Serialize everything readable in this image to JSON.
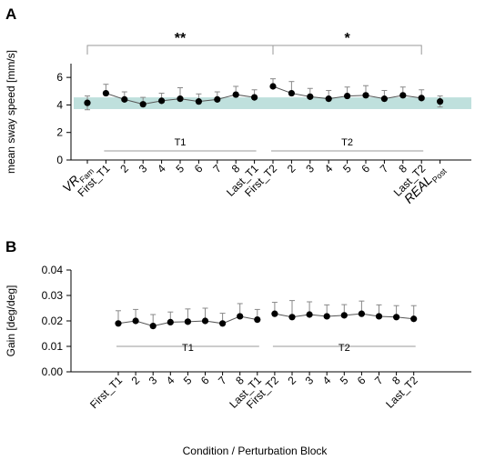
{
  "colors": {
    "band": "#bfe0dd",
    "marker": "#000000",
    "line": "#555555",
    "errorbar": "#888888",
    "axis": "#000000",
    "group_line": "#999999"
  },
  "chart_data": [
    {
      "panel": "A",
      "type": "scatter",
      "ylabel": "mean sway speed [mm/s]",
      "ylim": [
        0,
        7
      ],
      "yticks": [
        "0",
        "2",
        "4",
        "6"
      ],
      "reference_band": [
        3.7,
        4.55
      ],
      "x_labels": [
        {
          "main": "VR",
          "sub": "Fam"
        },
        {
          "main": "First_T1"
        },
        {
          "main": "2"
        },
        {
          "main": "3"
        },
        {
          "main": "4"
        },
        {
          "main": "5"
        },
        {
          "main": "6"
        },
        {
          "main": "7"
        },
        {
          "main": "8"
        },
        {
          "main": "Last_T1"
        },
        {
          "main": "First_T2"
        },
        {
          "main": "2"
        },
        {
          "main": "3"
        },
        {
          "main": "4"
        },
        {
          "main": "5"
        },
        {
          "main": "6"
        },
        {
          "main": "7"
        },
        {
          "main": "8"
        },
        {
          "main": "Last_T2"
        },
        {
          "main": "REAL",
          "sub": "Post"
        }
      ],
      "groups": [
        {
          "label": "T1",
          "from": 1,
          "to": 9
        },
        {
          "label": "T2",
          "from": 10,
          "to": 18
        }
      ],
      "series": [
        {
          "role": "single",
          "x": [
            0
          ],
          "values": [
            4.15
          ],
          "err": [
            0.5
          ]
        },
        {
          "role": "T1",
          "x": [
            1,
            2,
            3,
            4,
            5,
            6,
            7,
            8,
            9
          ],
          "values": [
            4.85,
            4.4,
            4.05,
            4.3,
            4.45,
            4.25,
            4.4,
            4.75,
            4.55
          ],
          "err": [
            0.65,
            0.55,
            0.5,
            0.55,
            0.8,
            0.55,
            0.55,
            0.6,
            0.55
          ]
        },
        {
          "role": "T2",
          "x": [
            10,
            11,
            12,
            13,
            14,
            15,
            16,
            17,
            18
          ],
          "values": [
            5.35,
            4.85,
            4.6,
            4.45,
            4.65,
            4.7,
            4.45,
            4.7,
            4.5
          ],
          "err": [
            0.55,
            0.85,
            0.6,
            0.6,
            0.65,
            0.7,
            0.6,
            0.6,
            0.6
          ]
        },
        {
          "role": "single",
          "x": [
            19
          ],
          "values": [
            4.25
          ],
          "err": [
            0.4
          ]
        }
      ],
      "significance": [
        {
          "label": "**",
          "from": 0,
          "to": 10
        },
        {
          "label": "*",
          "from": 10,
          "to": 18
        }
      ]
    },
    {
      "panel": "B",
      "type": "scatter",
      "ylabel": "Gain [deg/deg]",
      "ylim": [
        0,
        0.04
      ],
      "yticks": [
        "0.00",
        "0.01",
        "0.02",
        "0.03",
        "0.04"
      ],
      "x_labels": [
        {
          "main": "First_T1"
        },
        {
          "main": "2"
        },
        {
          "main": "3"
        },
        {
          "main": "4"
        },
        {
          "main": "5"
        },
        {
          "main": "6"
        },
        {
          "main": "7"
        },
        {
          "main": "8"
        },
        {
          "main": "Last_T1"
        },
        {
          "main": "First_T2"
        },
        {
          "main": "2"
        },
        {
          "main": "3"
        },
        {
          "main": "4"
        },
        {
          "main": "5"
        },
        {
          "main": "6"
        },
        {
          "main": "7"
        },
        {
          "main": "8"
        },
        {
          "main": "Last_T2"
        }
      ],
      "groups": [
        {
          "label": "T1",
          "from": 0,
          "to": 8
        },
        {
          "label": "T2",
          "from": 9,
          "to": 17
        }
      ],
      "series": [
        {
          "role": "T1",
          "x": [
            0,
            1,
            2,
            3,
            4,
            5,
            6,
            7,
            8
          ],
          "values": [
            0.019,
            0.02,
            0.018,
            0.0195,
            0.0197,
            0.02,
            0.019,
            0.0218,
            0.0205
          ],
          "err": [
            0.005,
            0.0045,
            0.0045,
            0.004,
            0.005,
            0.005,
            0.004,
            0.005,
            0.004
          ]
        },
        {
          "role": "T2",
          "x": [
            9,
            10,
            11,
            12,
            13,
            14,
            15,
            16,
            17
          ],
          "values": [
            0.0228,
            0.0215,
            0.0225,
            0.0218,
            0.0222,
            0.0228,
            0.0218,
            0.0215,
            0.0208
          ],
          "err": [
            0.0045,
            0.0065,
            0.005,
            0.0045,
            0.0042,
            0.005,
            0.0045,
            0.0045,
            0.0052
          ]
        }
      ]
    }
  ],
  "xlabel_common": "Condition / Perturbation Block"
}
